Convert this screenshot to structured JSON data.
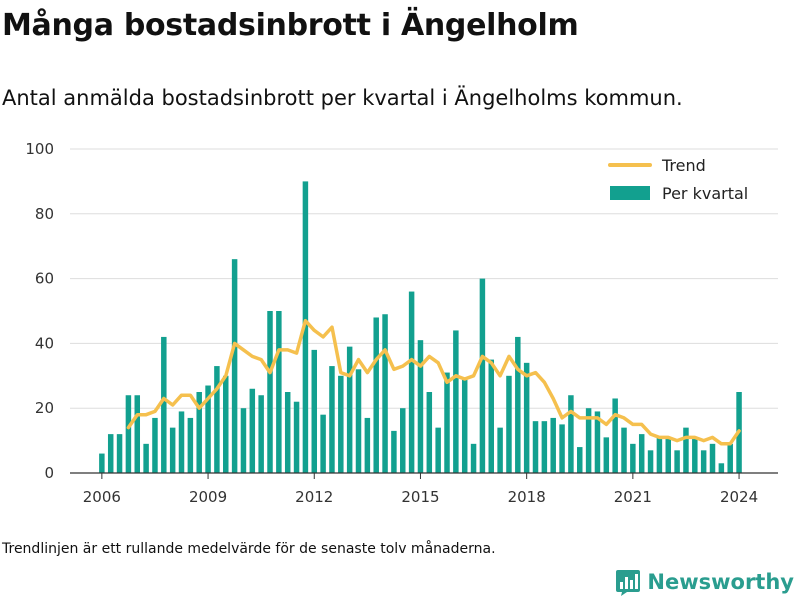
{
  "title": "Många bostadsinbrott i Ängelholm",
  "subtitle": "Antal anmälda bostadsinbrott per kvartal i Ängelholms kommun.",
  "footnote": "Trendlinjen är ett rullande medelvärde för de senaste tolv månaderna.",
  "brand": {
    "name": "Newsworthy",
    "icon": "bar-chart-logo-icon"
  },
  "colors": {
    "bars": "#12a08f",
    "trend": "#f5c04e",
    "grid": "#dddddd",
    "axis": "#333333",
    "brand": "#2a9d8f"
  },
  "chart_data": {
    "type": "bar",
    "title": "",
    "xlabel": "",
    "ylabel": "",
    "ylim": [
      0,
      100
    ],
    "yticks": [
      "0",
      "20",
      "40",
      "60",
      "80",
      "100"
    ],
    "xlim": [
      2005.1,
      2025.1
    ],
    "xticks": [
      "2006",
      "2009",
      "2012",
      "2015",
      "2018",
      "2021",
      "2024"
    ],
    "grid": "horizontal",
    "legend_position": "top-right",
    "start_year": 2006,
    "series": [
      {
        "name": "Per kvartal",
        "kind": "bar",
        "values": [
          6,
          12,
          12,
          24,
          24,
          9,
          17,
          42,
          14,
          19,
          17,
          25,
          27,
          33,
          30,
          66,
          20,
          26,
          24,
          50,
          50,
          25,
          22,
          90,
          38,
          18,
          33,
          30,
          39,
          32,
          17,
          48,
          49,
          13,
          20,
          56,
          41,
          25,
          14,
          31,
          44,
          29,
          9,
          60,
          35,
          14,
          30,
          42,
          34,
          16,
          16,
          17,
          15,
          24,
          8,
          20,
          19,
          11,
          23,
          14,
          9,
          12,
          7,
          11,
          11,
          7,
          14,
          11,
          7,
          9,
          3,
          9,
          25
        ]
      },
      {
        "name": "Trend",
        "kind": "line",
        "start_index": 3,
        "values": [
          14,
          18,
          18,
          19,
          23,
          21,
          24,
          24,
          20,
          23,
          26,
          30,
          40,
          38,
          36,
          35,
          31,
          38,
          38,
          37,
          47,
          44,
          42,
          45,
          31,
          30,
          35,
          31,
          35,
          38,
          32,
          33,
          35,
          33,
          36,
          34,
          28,
          30,
          29,
          30,
          36,
          34,
          30,
          36,
          32,
          30,
          31,
          28,
          23,
          17,
          19,
          17,
          17,
          17,
          15,
          18,
          17,
          15,
          15,
          12,
          11,
          11,
          10,
          11,
          11,
          10,
          11,
          9,
          9,
          13
        ]
      }
    ]
  }
}
